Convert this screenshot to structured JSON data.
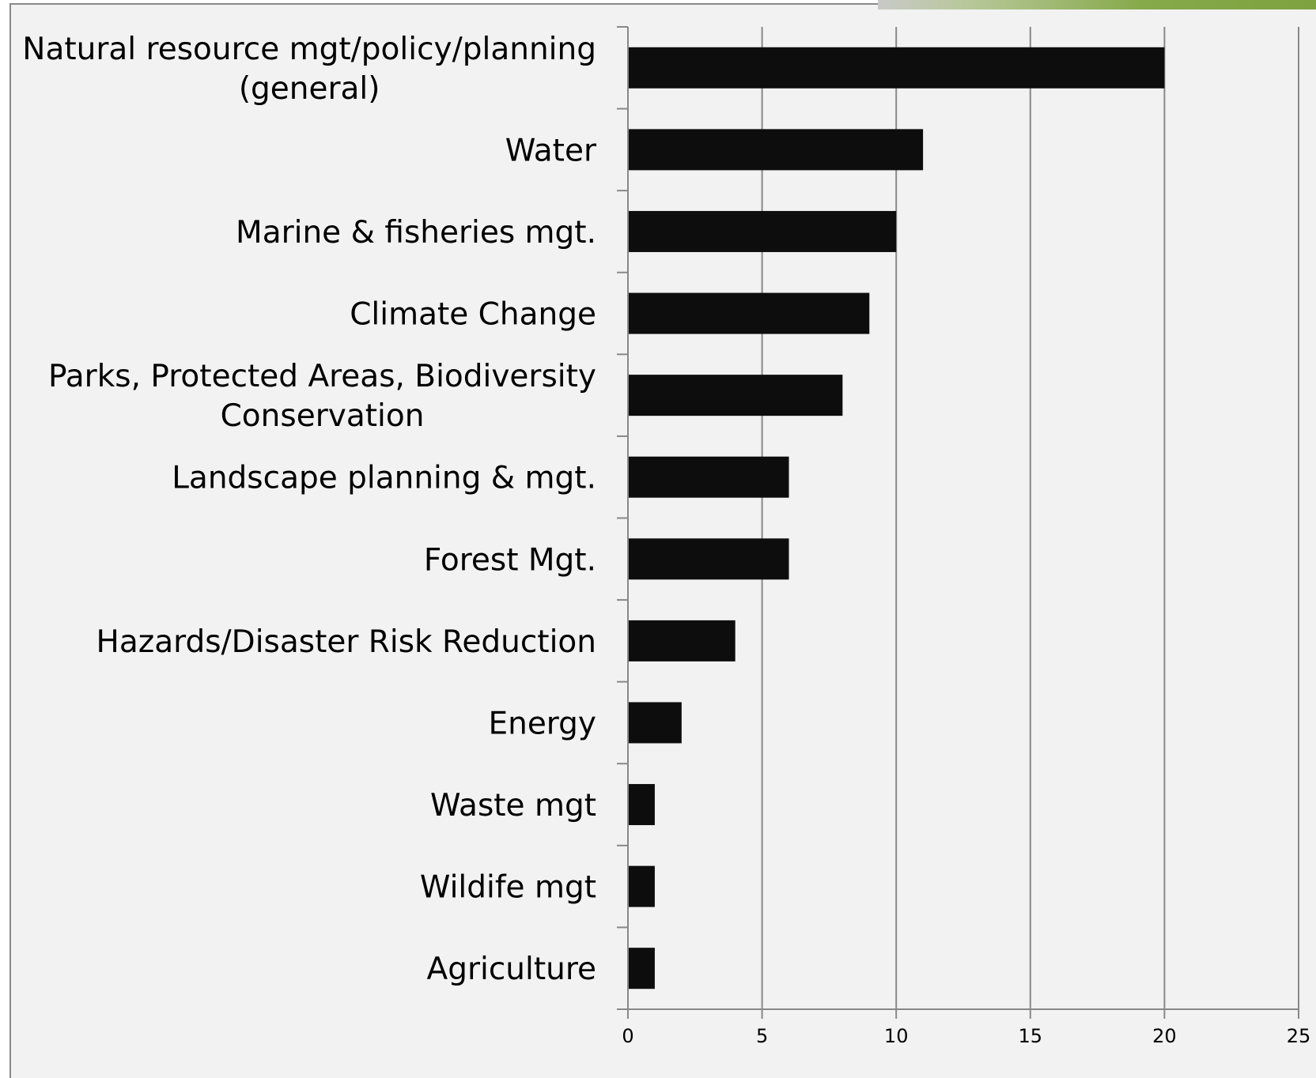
{
  "chart_data": {
    "type": "bar",
    "orientation": "horizontal",
    "title": "",
    "xlabel": "",
    "ylabel": "",
    "categories": [
      "Natural resource mgt/policy/planning (general)",
      "Water",
      "Marine & fisheries mgt.",
      "Climate Change",
      "Parks, Protected Areas, Biodiversity Conservation",
      "Landscape planning & mgt.",
      "Forest Mgt.",
      "Hazards/Disaster Risk Reduction",
      "Energy",
      "Waste mgt",
      "Wildife mgt",
      "Agriculture"
    ],
    "category_lines": [
      [
        "Natural resource mgt/policy/planning",
        "(general)"
      ],
      [
        "Water"
      ],
      [
        "Marine & fisheries mgt."
      ],
      [
        "Climate Change"
      ],
      [
        "Parks, Protected Areas, Biodiversity",
        "Conservation"
      ],
      [
        "Landscape planning & mgt."
      ],
      [
        "Forest Mgt."
      ],
      [
        "Hazards/Disaster Risk Reduction"
      ],
      [
        "Energy"
      ],
      [
        "Waste mgt"
      ],
      [
        "Wildife mgt"
      ],
      [
        "Agriculture"
      ]
    ],
    "values": [
      20,
      11,
      10,
      9,
      8,
      6,
      6,
      4,
      2,
      1,
      1,
      1
    ],
    "xlim": [
      0,
      25
    ],
    "x_ticks": [
      0,
      5,
      10,
      15,
      20,
      25
    ],
    "grid": true,
    "legend": "none",
    "bar_color": "#0d0d0d",
    "grid_color": "#888888",
    "background_color": "#f2f2f2"
  }
}
